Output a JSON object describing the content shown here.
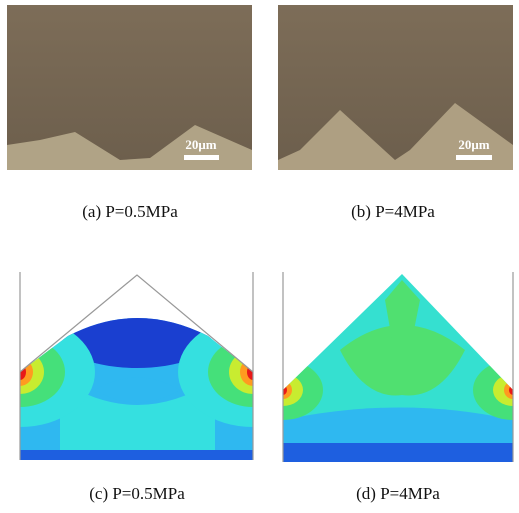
{
  "panels": [
    {
      "caption": "(a) P=0.5MPa",
      "scale_bar": "20μm"
    },
    {
      "caption": "(b) P=4MPa",
      "scale_bar": "20μm"
    },
    {
      "caption": "(c) P=0.5MPa"
    },
    {
      "caption": "(d) P=4MPa"
    }
  ]
}
